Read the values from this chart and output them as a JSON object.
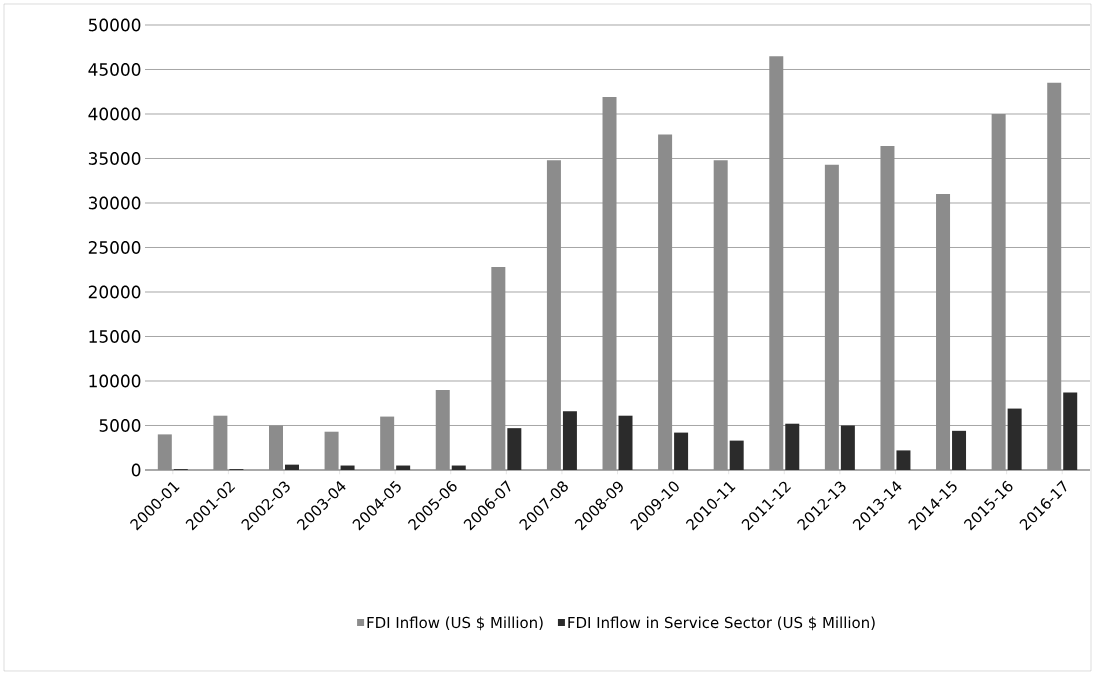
{
  "chart_data": {
    "type": "bar",
    "categories": [
      "2000-01",
      "2001-02",
      "2002-03",
      "2003-04",
      "2004-05",
      "2005-06",
      "2006-07",
      "2007-08",
      "2008-09",
      "2009-10",
      "2010-11",
      "2011-12",
      "2012-13",
      "2013-14",
      "2014-15",
      "2015-16",
      "2016-17"
    ],
    "series": [
      {
        "name": "FDI Inflow (US $ Million)",
        "color": "#8c8c8c",
        "values": [
          4000,
          6100,
          5000,
          4300,
          6000,
          9000,
          22800,
          34800,
          41900,
          37700,
          34800,
          46500,
          34300,
          36400,
          31000,
          40000,
          43500
        ]
      },
      {
        "name": "FDI Inflow in Service Sector (US $ Million)",
        "color": "#2b2b2b",
        "values": [
          100,
          100,
          600,
          500,
          500,
          500,
          4700,
          6600,
          6100,
          4200,
          3300,
          5200,
          5000,
          2200,
          4400,
          6900,
          8700
        ]
      }
    ],
    "ylim": [
      0,
      50000
    ],
    "yticks": [
      0,
      5000,
      10000,
      15000,
      20000,
      25000,
      30000,
      35000,
      40000,
      45000,
      50000
    ],
    "grid": "y",
    "legend": "bottom"
  }
}
